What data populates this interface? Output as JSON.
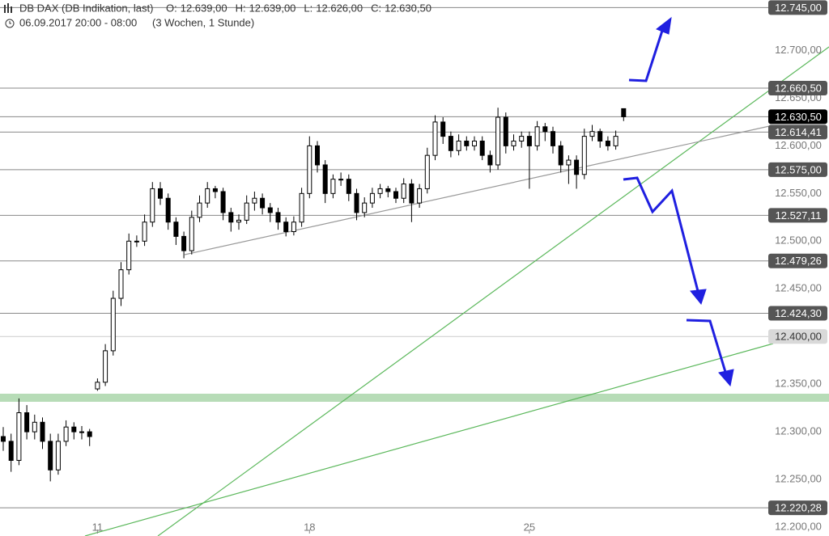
{
  "chart_data": {
    "type": "candlestick",
    "title": "DB DAX (DB Indikation, last)",
    "subtitle": "06.09.2017 20:00 - 08:00",
    "period": "(3 Wochen, 1 Stunde)",
    "ohlc_legend": {
      "labels": [
        "O:",
        "H:",
        "L:",
        "C:"
      ],
      "values": [
        12639,
        12639,
        12626,
        12630.5
      ],
      "value_labels": [
        "12.639,00",
        "12.639,00",
        "12.626,00",
        "12.630,50"
      ]
    },
    "categories": [
      null,
      null,
      null,
      null,
      null,
      null,
      null,
      null,
      null,
      null,
      null,
      null,
      "11",
      null,
      null,
      null,
      null,
      null,
      null,
      null,
      null,
      null,
      null,
      null,
      null,
      null,
      null,
      null,
      null,
      null,
      null,
      null,
      null,
      null,
      null,
      null,
      null,
      null,
      null,
      "18",
      null,
      null,
      null,
      null,
      null,
      null,
      null,
      null,
      null,
      null,
      null,
      null,
      null,
      null,
      null,
      null,
      null,
      null,
      null,
      null,
      null,
      null,
      null,
      null,
      null,
      null,
      null,
      "25",
      null,
      null,
      null,
      null,
      null,
      null,
      null,
      null,
      null,
      null,
      null,
      null
    ],
    "open": [
      12295,
      12290,
      12270,
      12320,
      12300,
      12310,
      12290,
      12260,
      12290,
      12305,
      12300,
      12300,
      12345,
      12352,
      12385,
      12440,
      12470,
      12500,
      12500,
      12520,
      12555,
      12545,
      12520,
      12505,
      12490,
      12525,
      12540,
      12555,
      12552,
      12530,
      12520,
      12522,
      12540,
      12545,
      12535,
      12530,
      12520,
      12510,
      12520,
      12550,
      12600,
      12580,
      12550,
      12565,
      12565,
      12550,
      12530,
      12540,
      12550,
      12555,
      12552,
      12545,
      12560,
      12540,
      12555,
      12590,
      12625,
      12610,
      12595,
      12605,
      12600,
      12605,
      12590,
      12580,
      12630,
      12600,
      12605,
      12610,
      12600,
      12620,
      12615,
      12600,
      12580,
      12585,
      12570,
      12610,
      12615,
      12605,
      12600,
      12639
    ],
    "high": [
      12305,
      12298,
      12335,
      12328,
      12318,
      12315,
      12298,
      12298,
      12312,
      12310,
      12306,
      12303,
      12356,
      12392,
      12448,
      12478,
      12508,
      12506,
      12528,
      12562,
      12562,
      12550,
      12525,
      12510,
      12532,
      12548,
      12562,
      12558,
      12556,
      12535,
      12528,
      12548,
      12552,
      12550,
      12540,
      12535,
      12525,
      12526,
      12556,
      12610,
      12605,
      12585,
      12570,
      12572,
      12570,
      12555,
      12546,
      12556,
      12560,
      12558,
      12556,
      12566,
      12565,
      12560,
      12598,
      12632,
      12630,
      12615,
      12612,
      12610,
      12610,
      12610,
      12595,
      12640,
      12635,
      12612,
      12615,
      12615,
      12626,
      12624,
      12620,
      12605,
      12590,
      12590,
      12618,
      12622,
      12618,
      12610,
      12616,
      12639
    ],
    "low": [
      12280,
      12258,
      12265,
      12292,
      12292,
      12282,
      12248,
      12255,
      12285,
      12292,
      12292,
      12285,
      12343,
      12348,
      12380,
      12432,
      12465,
      12494,
      12495,
      12515,
      12538,
      12512,
      12496,
      12482,
      12486,
      12520,
      12535,
      12545,
      12522,
      12510,
      12512,
      12518,
      12532,
      12528,
      12520,
      12512,
      12505,
      12506,
      12515,
      12545,
      12572,
      12540,
      12545,
      12558,
      12542,
      12522,
      12525,
      12535,
      12545,
      12546,
      12540,
      12540,
      12520,
      12535,
      12550,
      12585,
      12602,
      12588,
      12590,
      12595,
      12595,
      12585,
      12572,
      12575,
      12592,
      12595,
      12598,
      12555,
      12595,
      12605,
      12592,
      12572,
      12560,
      12555,
      12565,
      12605,
      12598,
      12595,
      12596,
      12626
    ],
    "close": [
      12290,
      12270,
      12320,
      12300,
      12310,
      12290,
      12260,
      12290,
      12305,
      12300,
      12300,
      12295,
      12352,
      12385,
      12440,
      12470,
      12500,
      12500,
      12520,
      12555,
      12545,
      12520,
      12505,
      12490,
      12525,
      12540,
      12555,
      12552,
      12530,
      12520,
      12522,
      12540,
      12545,
      12535,
      12530,
      12520,
      12510,
      12520,
      12550,
      12600,
      12580,
      12550,
      12565,
      12565,
      12550,
      12530,
      12540,
      12550,
      12555,
      12552,
      12545,
      12560,
      12540,
      12555,
      12590,
      12625,
      12610,
      12595,
      12605,
      12600,
      12605,
      12590,
      12580,
      12630,
      12600,
      12605,
      12610,
      12600,
      12620,
      12615,
      12600,
      12580,
      12585,
      12570,
      12610,
      12615,
      12605,
      12600,
      12610,
      12630.5
    ],
    "up_color": "#ffffff",
    "down_color": "#000000",
    "ylim": [
      12200,
      12753
    ],
    "yticks": [
      {
        "value": 12200,
        "label": "12.200,00"
      },
      {
        "value": 12250,
        "label": "12.250,00"
      },
      {
        "value": 12300,
        "label": "12.300,00"
      },
      {
        "value": 12350,
        "label": "12.350,00"
      },
      {
        "value": 12450,
        "label": "12.450,00"
      },
      {
        "value": 12500,
        "label": "12.500,00"
      },
      {
        "value": 12550,
        "label": "12.550,00"
      },
      {
        "value": 12600,
        "label": "12.600,00"
      },
      {
        "value": 12650,
        "label": "12.650,00"
      },
      {
        "value": 12700,
        "label": "12.700,00"
      }
    ],
    "levels": [
      {
        "value": 12745,
        "label": "12.745,00",
        "color": "#555555"
      },
      {
        "value": 12660.5,
        "label": "12.660,50",
        "color": "#555555"
      },
      {
        "value": 12630.5,
        "label": "12.630,50",
        "color": "#000000"
      },
      {
        "value": 12614.41,
        "label": "12.614,41",
        "color": "#555555"
      },
      {
        "value": 12575,
        "label": "12.575,00",
        "color": "#555555"
      },
      {
        "value": 12527.11,
        "label": "12.527,11",
        "color": "#555555"
      },
      {
        "value": 12479.26,
        "label": "12.479,26",
        "color": "#555555"
      },
      {
        "value": 12424.3,
        "label": "12.424,30",
        "color": "#555555"
      },
      {
        "value": 12400,
        "label": "12.400,00",
        "color": "#d9d9d9"
      },
      {
        "value": 12220.28,
        "label": "12.220,28",
        "color": "#555555"
      }
    ]
  }
}
